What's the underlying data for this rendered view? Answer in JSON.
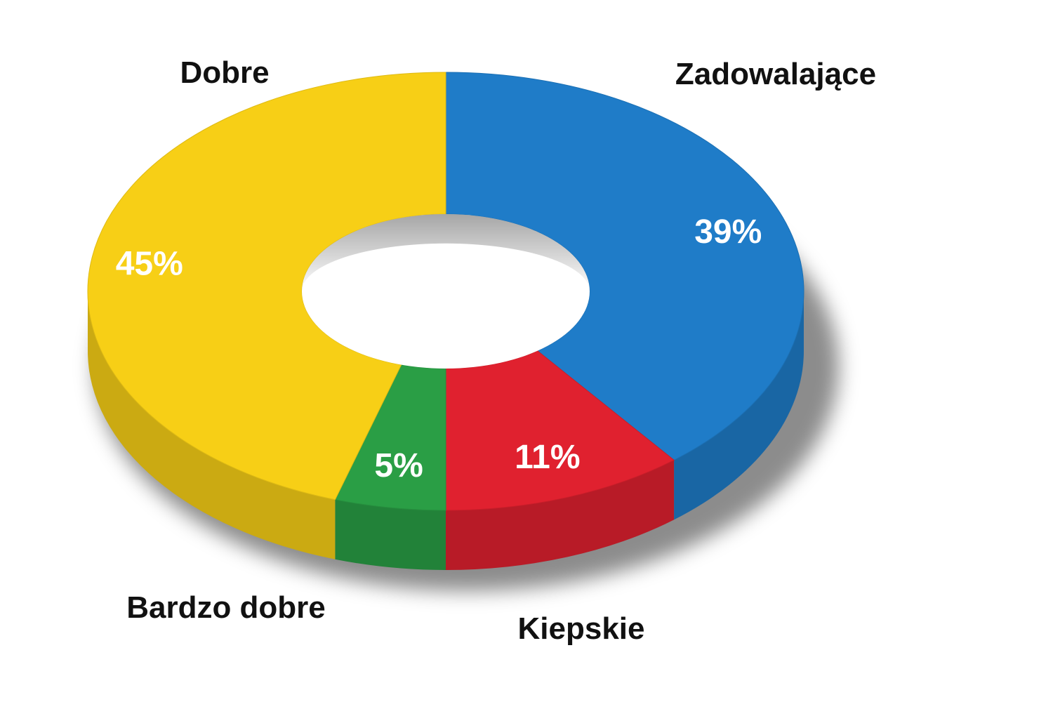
{
  "chart_data": {
    "type": "pie",
    "variant": "donut-3d",
    "legend": "none",
    "slices": [
      {
        "label": "Zadowalające",
        "value": 39,
        "value_label": "39%",
        "color": "#1f7cc8"
      },
      {
        "label": "Kiepskie",
        "value": 11,
        "value_label": "11%",
        "color": "#e0212f"
      },
      {
        "label": "Bardzo dobre",
        "value": 5,
        "value_label": "5%",
        "color": "#2a9e45"
      },
      {
        "label": "Dobre",
        "value": 45,
        "value_label": "45%",
        "color": "#f7cf16"
      }
    ]
  }
}
